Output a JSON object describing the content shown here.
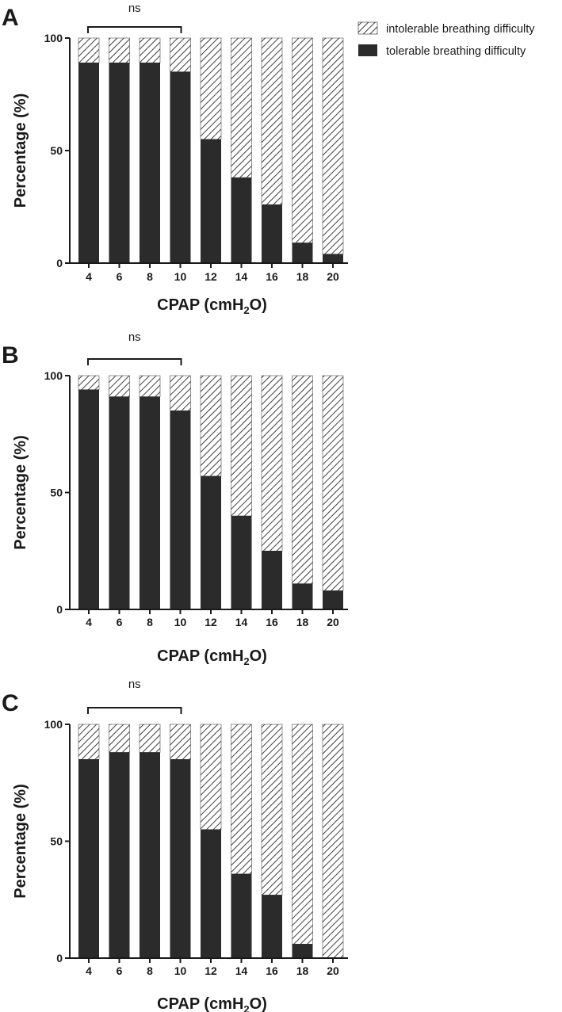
{
  "legend": {
    "items": [
      {
        "label": "intolerable breathing difficulty",
        "style": "hatched"
      },
      {
        "label": "tolerable breathing difficulty",
        "style": "solid"
      }
    ]
  },
  "colors": {
    "bar_solid": "#2b2b2b",
    "hatch": "#2b2b2b",
    "axis": "#1a1a1a"
  },
  "chart_data": [
    {
      "panel": "A",
      "type": "bar",
      "stacked": true,
      "categories": [
        "4",
        "6",
        "8",
        "10",
        "12",
        "14",
        "16",
        "18",
        "20"
      ],
      "series": [
        {
          "name": "tolerable breathing difficulty",
          "values": [
            89,
            89,
            89,
            85,
            55,
            38,
            26,
            9,
            4
          ]
        },
        {
          "name": "intolerable breathing difficulty",
          "values": [
            11,
            11,
            11,
            15,
            45,
            62,
            74,
            91,
            96
          ]
        }
      ],
      "xlabel_main": "CPAP (cmH",
      "xlabel_sub": "2",
      "xlabel_end": "O)",
      "ylabel": "Percentage (%)",
      "ylim": [
        0,
        100
      ],
      "yticks": [
        "0",
        "50",
        "100"
      ],
      "annotation": {
        "text": "ns",
        "from_category": "4",
        "to_category": "10"
      },
      "grid": false
    },
    {
      "panel": "B",
      "type": "bar",
      "stacked": true,
      "categories": [
        "4",
        "6",
        "8",
        "10",
        "12",
        "14",
        "16",
        "18",
        "20"
      ],
      "series": [
        {
          "name": "tolerable breathing difficulty",
          "values": [
            94,
            91,
            91,
            85,
            57,
            40,
            25,
            11,
            8
          ]
        },
        {
          "name": "intolerable breathing difficulty",
          "values": [
            6,
            9,
            9,
            15,
            43,
            60,
            75,
            89,
            92
          ]
        }
      ],
      "xlabel_main": "CPAP (cmH",
      "xlabel_sub": "2",
      "xlabel_end": "O)",
      "ylabel": "Percentage (%)",
      "ylim": [
        0,
        100
      ],
      "yticks": [
        "0",
        "50",
        "100"
      ],
      "annotation": {
        "text": "ns",
        "from_category": "4",
        "to_category": "10"
      },
      "grid": false
    },
    {
      "panel": "C",
      "type": "bar",
      "stacked": true,
      "categories": [
        "4",
        "6",
        "8",
        "10",
        "12",
        "14",
        "16",
        "18",
        "20"
      ],
      "series": [
        {
          "name": "tolerable breathing difficulty",
          "values": [
            85,
            88,
            88,
            85,
            55,
            36,
            27,
            6,
            0
          ]
        },
        {
          "name": "intolerable breathing difficulty",
          "values": [
            15,
            12,
            12,
            15,
            45,
            64,
            73,
            94,
            100
          ]
        }
      ],
      "xlabel_main": "CPAP (cmH",
      "xlabel_sub": "2",
      "xlabel_end": "O)",
      "ylabel": "Percentage (%)",
      "ylim": [
        0,
        100
      ],
      "yticks": [
        "0",
        "50",
        "100"
      ],
      "annotation": {
        "text": "ns",
        "from_category": "4",
        "to_category": "10"
      },
      "grid": false
    }
  ]
}
